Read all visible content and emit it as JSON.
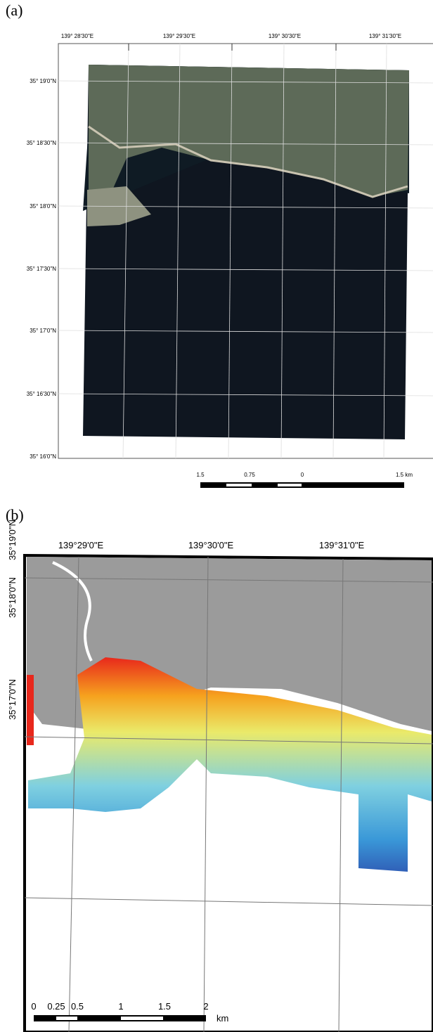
{
  "panels": [
    {
      "label": "(a)",
      "lon_labels": [
        "139° 28'30\"E",
        "139° 29'30\"E",
        "139° 30'30\"E",
        "139° 31'30\"E"
      ],
      "lat_labels": [
        "35° 19'0\"N",
        "35° 18'30\"N",
        "35° 18'0\"N",
        "35° 17'30\"N",
        "35° 17'0\"N",
        "35° 16'30\"N",
        "35° 16'0\"N"
      ],
      "scale_labels": [
        "1.5",
        "0.75",
        "0",
        "1.5 km"
      ]
    },
    {
      "label": "(b)",
      "lon_labels": [
        "139°29'0\"E",
        "139°30'0\"E",
        "139°31'0\"E"
      ],
      "lat_labels": [
        "35°19'0\"N",
        "35°18'0\"N",
        "35°17'0\"N"
      ],
      "scale_labels": [
        "0",
        "0.25",
        "0.5",
        "1",
        "1.5",
        "2",
        "km"
      ]
    }
  ]
}
